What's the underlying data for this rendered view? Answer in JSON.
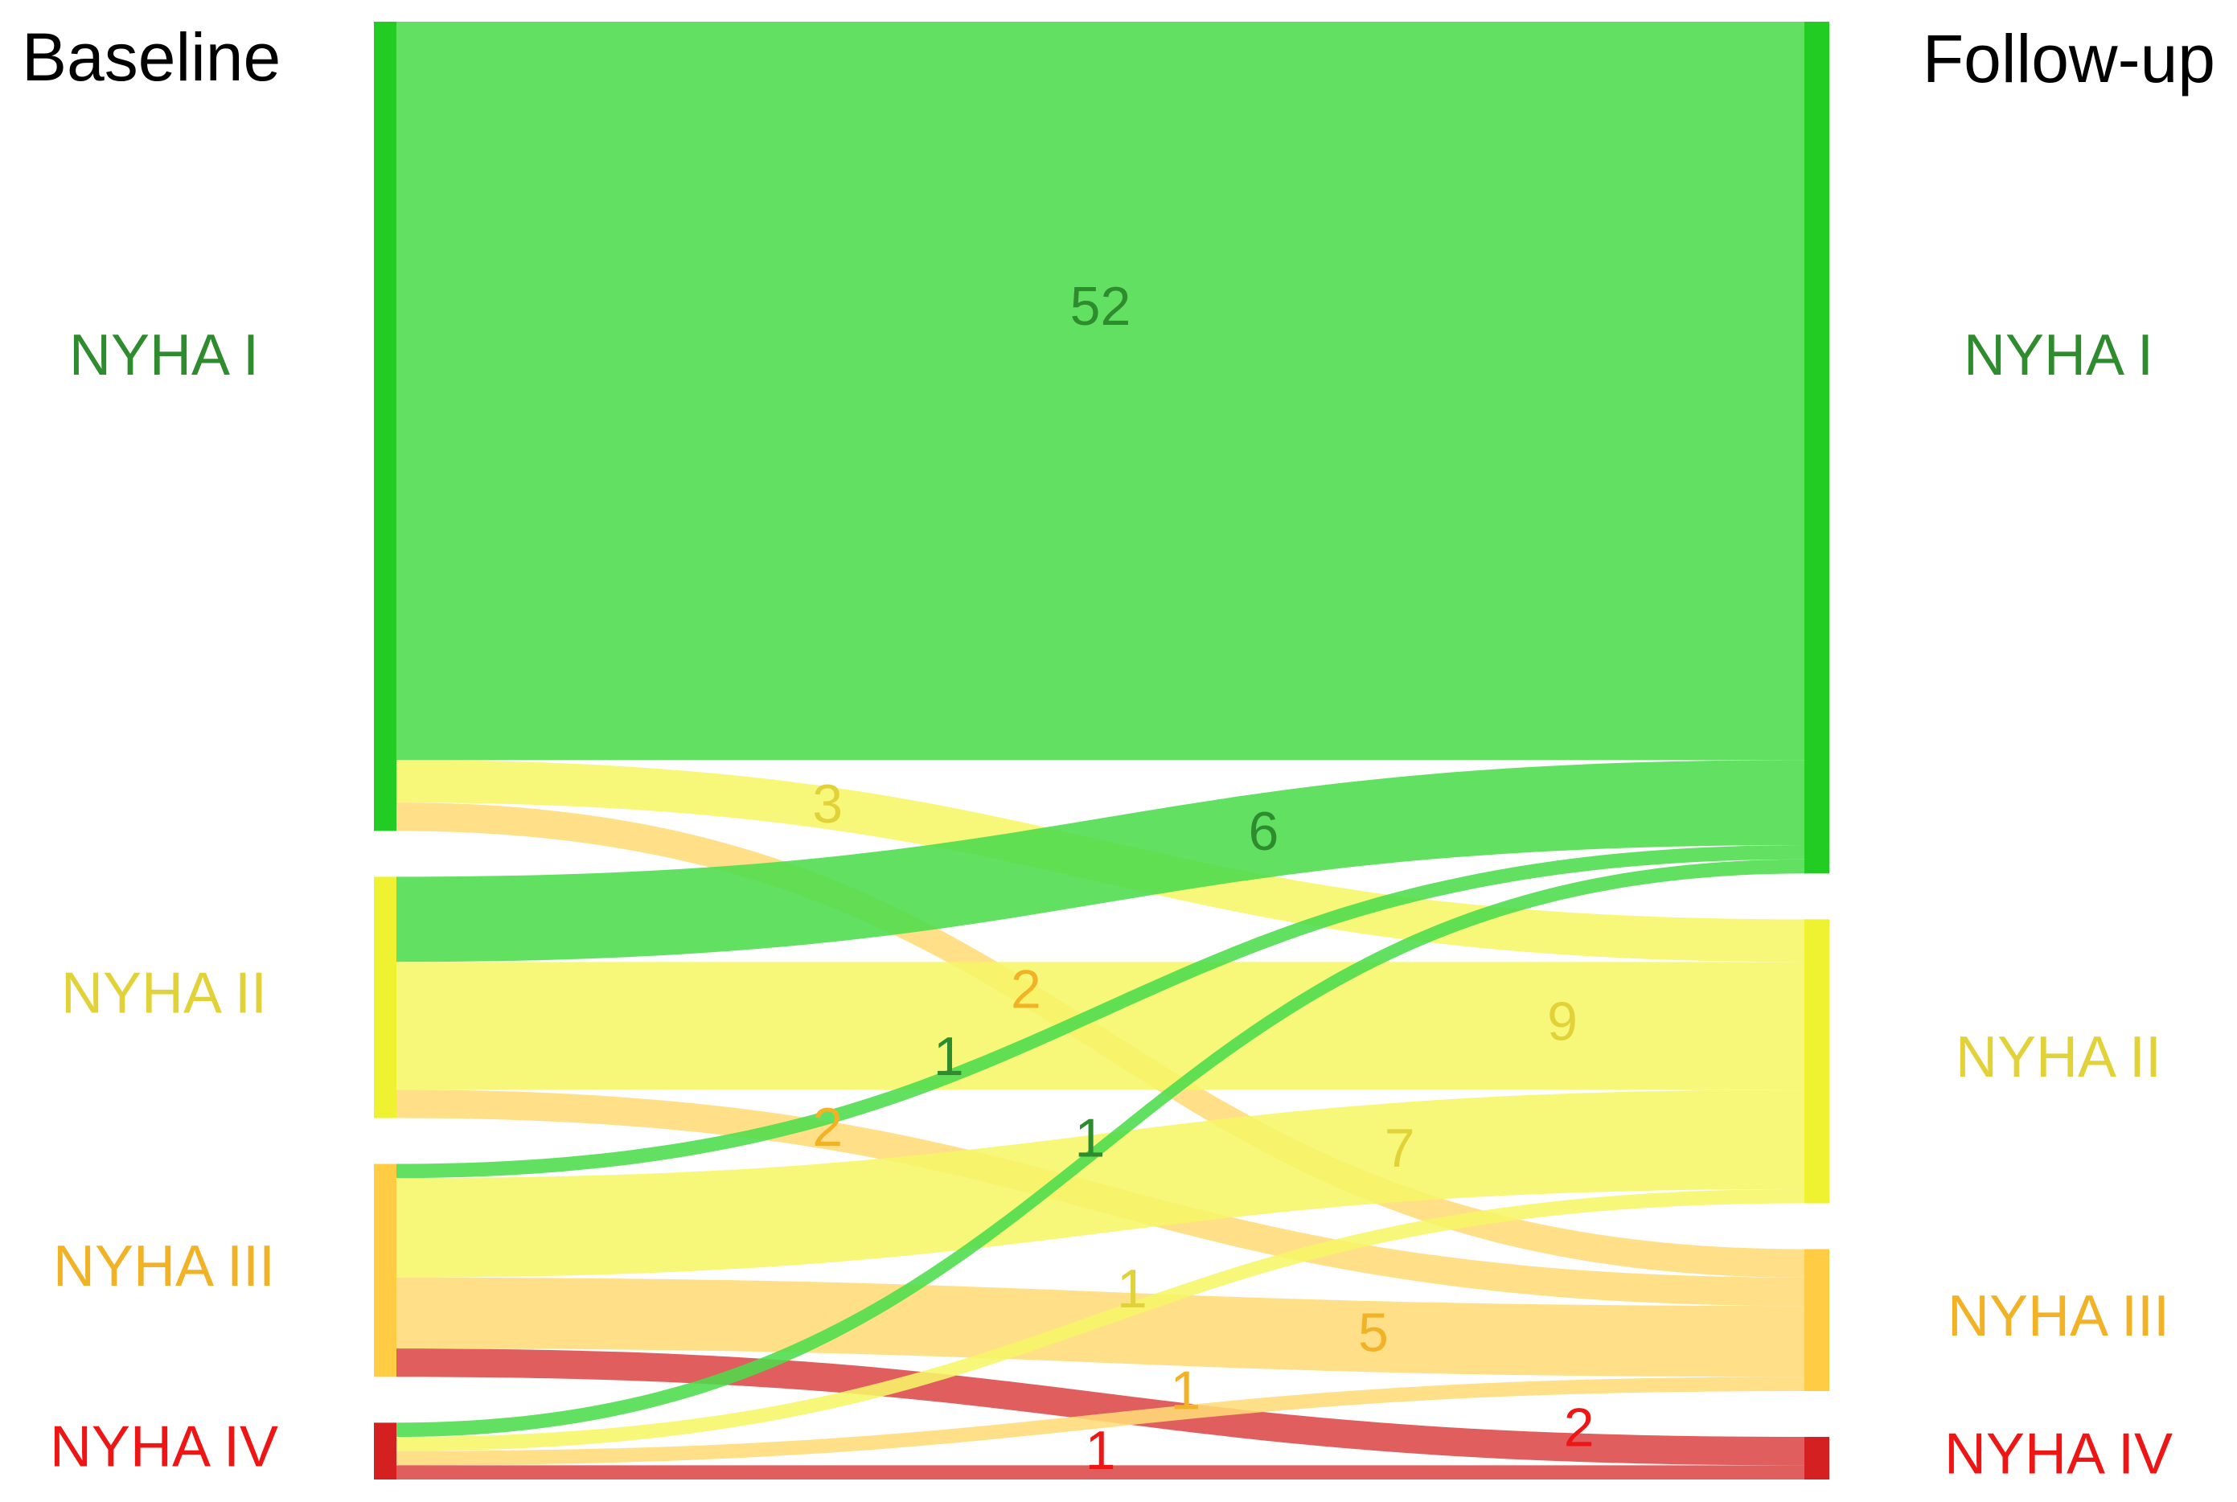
{
  "chart_data": {
    "type": "sankey",
    "left_title": "Baseline",
    "right_title": "Follow-up",
    "nodes": [
      {
        "name": "NYHA I",
        "color": "#22cc22",
        "link_color": "#4cdc4c",
        "text_color": "#2e8b2e"
      },
      {
        "name": "NYHA II",
        "color": "#eef230",
        "link_color": "#f6f668",
        "text_color": "#e2d23a"
      },
      {
        "name": "NYHA III",
        "color": "#ffcc44",
        "link_color": "#ffdc78",
        "text_color": "#f2b226"
      },
      {
        "name": "NYHA IV",
        "color": "#d42020",
        "link_color": "#dc4848",
        "text_color": "#ee1515"
      }
    ],
    "links": [
      {
        "source": "NYHA I",
        "target": "NYHA I",
        "value": 52
      },
      {
        "source": "NYHA I",
        "target": "NYHA II",
        "value": 3
      },
      {
        "source": "NYHA I",
        "target": "NYHA III",
        "value": 2
      },
      {
        "source": "NYHA II",
        "target": "NYHA I",
        "value": 6
      },
      {
        "source": "NYHA II",
        "target": "NYHA II",
        "value": 9
      },
      {
        "source": "NYHA II",
        "target": "NYHA III",
        "value": 2
      },
      {
        "source": "NYHA III",
        "target": "NYHA I",
        "value": 1
      },
      {
        "source": "NYHA III",
        "target": "NYHA II",
        "value": 7
      },
      {
        "source": "NYHA III",
        "target": "NYHA III",
        "value": 5
      },
      {
        "source": "NYHA III",
        "target": "NYHA IV",
        "value": 2
      },
      {
        "source": "NYHA IV",
        "target": "NYHA I",
        "value": 1
      },
      {
        "source": "NYHA IV",
        "target": "NYHA II",
        "value": 1
      },
      {
        "source": "NYHA IV",
        "target": "NYHA III",
        "value": 1
      },
      {
        "source": "NYHA IV",
        "target": "NYHA IV",
        "value": 1
      }
    ]
  }
}
